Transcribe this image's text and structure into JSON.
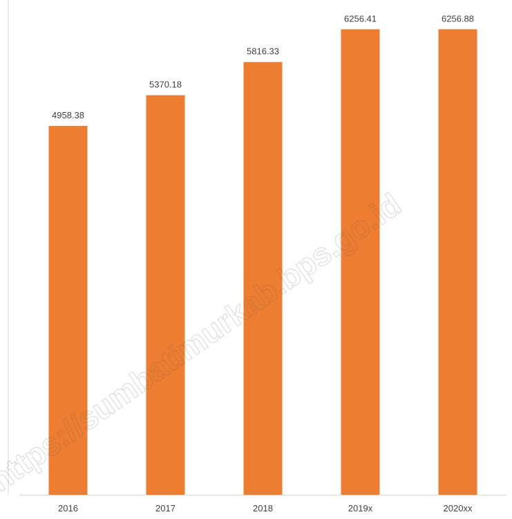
{
  "chart_data": {
    "type": "bar",
    "categories": [
      "2016",
      "2017",
      "2018",
      "2019x",
      "2020xx"
    ],
    "values": [
      4958.38,
      5370.18,
      5816.33,
      6256.41,
      6256.88
    ],
    "value_labels": [
      "4958.38",
      "5370.18",
      "5816.33",
      "6256.41",
      "6256.88"
    ],
    "ylim": [
      0,
      6650
    ],
    "grid": false,
    "legend": "none",
    "bar_color": "#ED7D31"
  },
  "watermark": {
    "text": "https://sumbatimurkab.bps.go.id"
  }
}
